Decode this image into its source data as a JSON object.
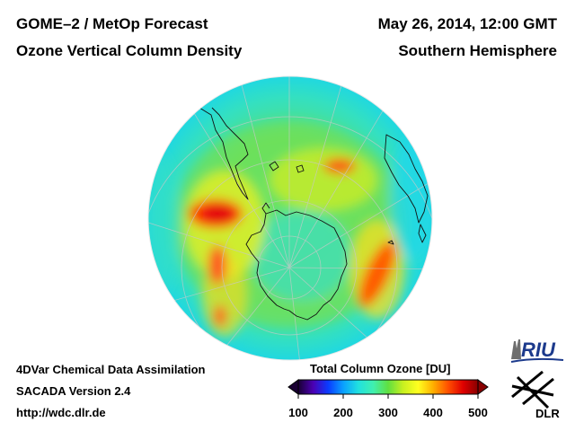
{
  "header": {
    "title_line1": "GOME–2 / MetOp Forecast",
    "title_line2": "Ozone Vertical Column Density",
    "date_line": "May 26, 2014, 12:00 GMT",
    "region": "Southern Hemisphere"
  },
  "footer": {
    "line1": "4DVar Chemical Data Assimilation",
    "line2": "SACADA Version 2.4",
    "line3": "http://wdc.dlr.de"
  },
  "colorbar": {
    "title": "Total Column Ozone [DU]",
    "ticks": [
      "100",
      "200",
      "300",
      "400",
      "500"
    ],
    "min": 100,
    "max": 500,
    "colors": [
      "#1a0033",
      "#4b00b4",
      "#0a3cff",
      "#0aa0ff",
      "#20e0e0",
      "#40f0b0",
      "#60e040",
      "#c8f020",
      "#ffff20",
      "#ffb000",
      "#ff5000",
      "#e00000",
      "#880000"
    ]
  },
  "logos": {
    "riu_text": "RIU",
    "dlr_text": "DLR"
  },
  "map": {
    "projection": "polar-stereographic-south",
    "background_ozone_DU": 290,
    "ozone_features": [
      {
        "name": "high-over-south-atlantic-west",
        "value_DU": 470
      },
      {
        "name": "high-over-indian-ocean-east",
        "value_DU": 420
      },
      {
        "name": "high-near-south-africa",
        "value_DU": 430
      },
      {
        "name": "high-over-south-pacific",
        "value_DU": 410
      },
      {
        "name": "low-over-antarctica",
        "value_DU": 260
      }
    ]
  }
}
